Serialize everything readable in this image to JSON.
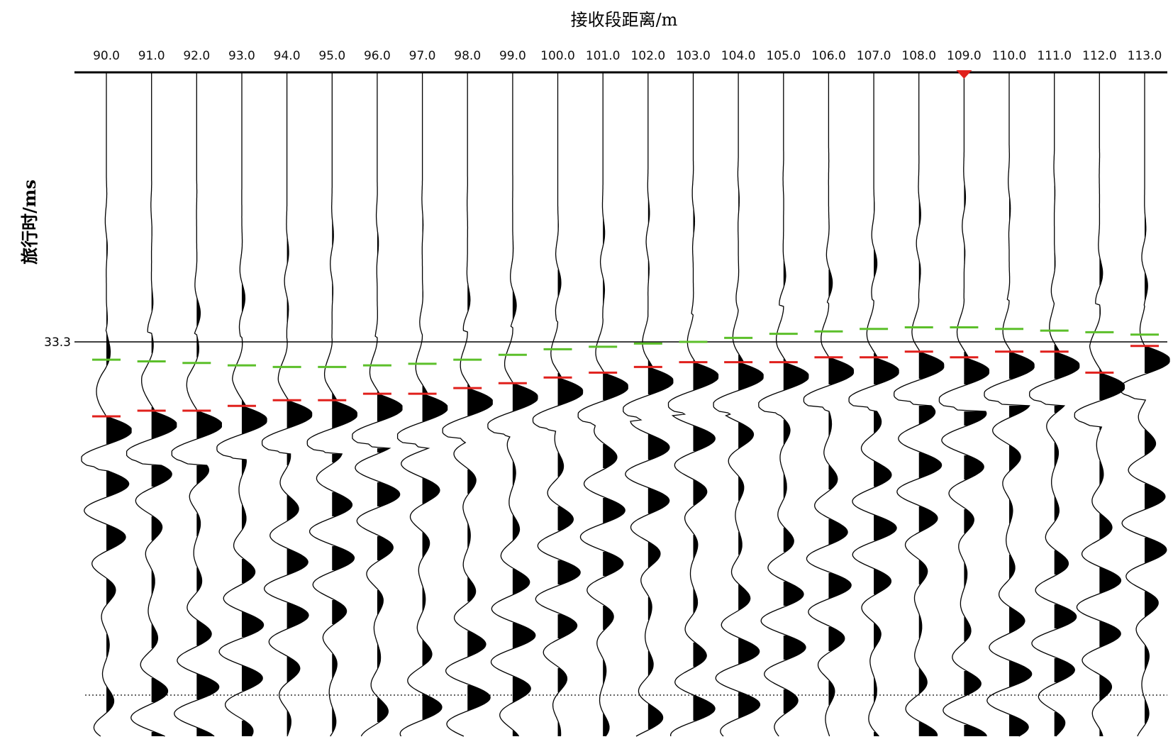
{
  "chart_data": {
    "type": "wiggle",
    "title": "接收段距离/m",
    "y_label": "旅行时/ms",
    "categories": [
      "90.0",
      "91.0",
      "92.0",
      "93.0",
      "94.0",
      "95.0",
      "96.0",
      "97.0",
      "98.0",
      "99.0",
      "100.0",
      "101.0",
      "102.0",
      "103.0",
      "104.0",
      "105.0",
      "106.0",
      "107.0",
      "108.0",
      "109.0",
      "110.0",
      "111.0",
      "112.0",
      "113.0"
    ],
    "shot_at": "109.0",
    "ylim": [
      0,
      82.1
    ],
    "yticks": [
      33.3
    ],
    "series": [
      {
        "color": "#5cbf2a",
        "values": [
          35.5,
          35.7,
          35.9,
          36.2,
          36.4,
          36.4,
          36.2,
          36.0,
          35.5,
          34.9,
          34.2,
          33.9,
          33.5,
          33.3,
          32.8,
          32.3,
          32.0,
          31.7,
          31.5,
          31.5,
          31.7,
          31.9,
          32.1,
          32.4
        ]
      },
      {
        "color": "#e0201c",
        "values": [
          42.5,
          41.8,
          41.8,
          41.2,
          40.5,
          40.5,
          39.7,
          39.7,
          39.0,
          38.4,
          37.7,
          37.1,
          36.4,
          35.8,
          35.8,
          35.8,
          35.2,
          35.2,
          34.5,
          35.2,
          34.5,
          34.5,
          37.1,
          33.8
        ]
      }
    ]
  }
}
